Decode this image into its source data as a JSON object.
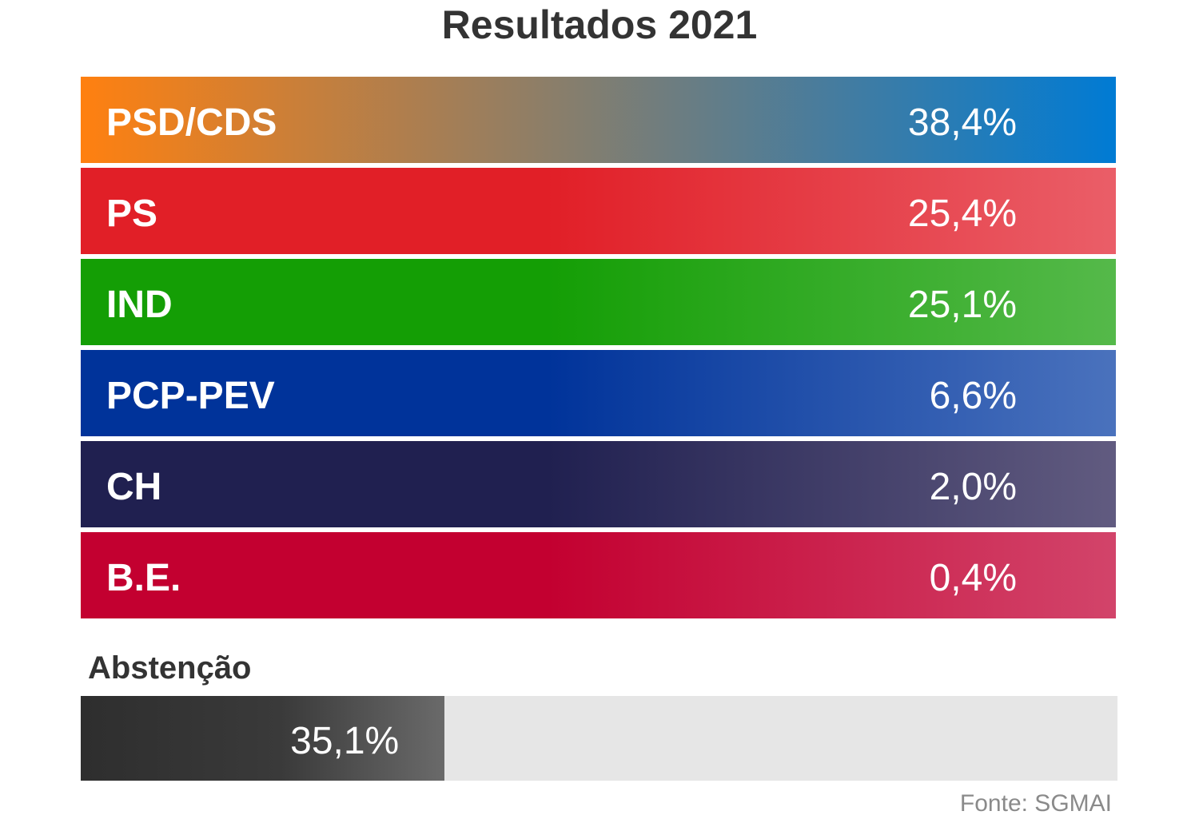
{
  "title": "Resultados 2021",
  "chart_data": {
    "type": "table",
    "title": "Resultados 2021",
    "rows": [
      {
        "party": "PSD/CDS",
        "value": 38.4,
        "label": "38,4%",
        "color_start": "#ff8010",
        "color_end": "#007bd4"
      },
      {
        "party": "PS",
        "value": 25.4,
        "label": "25,4%",
        "color_start": "#e11f27",
        "color_end": "#ea5e68"
      },
      {
        "party": "IND",
        "value": 25.1,
        "label": "25,1%",
        "color_start": "#149e05",
        "color_end": "#55b94a"
      },
      {
        "party": "PCP-PEV",
        "value": 6.6,
        "label": "6,6%",
        "color_start": "#00339a",
        "color_end": "#4a72bd"
      },
      {
        "party": "CH",
        "value": 2.0,
        "label": "2,0%",
        "color_start": "#202050",
        "color_end": "#615b80"
      },
      {
        "party": "B.E.",
        "value": 0.4,
        "label": "0,4%",
        "color_start": "#c30030",
        "color_end": "#d2446a"
      }
    ],
    "abstention": {
      "label": "Abstenção",
      "value": 35.1,
      "value_label": "35,1%"
    }
  },
  "source": "Fonte: SGMAI"
}
